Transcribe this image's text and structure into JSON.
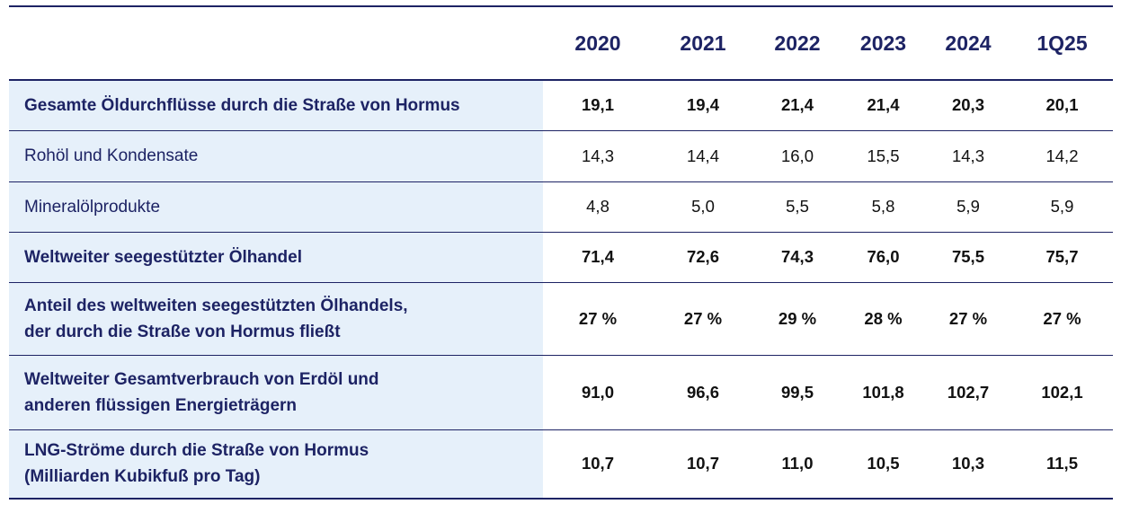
{
  "header": {
    "years": [
      "2020",
      "2021",
      "2022",
      "2023",
      "2024",
      "1Q25"
    ]
  },
  "rows": [
    {
      "label_lines": [
        "Gesamte Öldurchflüsse durch die Straße von Hormus"
      ],
      "values": [
        "19,1",
        "19,4",
        "21,4",
        "21,4",
        "20,3",
        "20,1"
      ]
    },
    {
      "label_lines": [
        "Rohöl und Kondensate"
      ],
      "values": [
        "14,3",
        "14,4",
        "16,0",
        "15,5",
        "14,3",
        "14,2"
      ]
    },
    {
      "label_lines": [
        "Mineralölprodukte"
      ],
      "values": [
        "4,8",
        "5,0",
        "5,5",
        "5,8",
        "5,9",
        "5,9"
      ]
    },
    {
      "label_lines": [
        "Weltweiter seegestützter Ölhandel"
      ],
      "values": [
        "71,4",
        "72,6",
        "74,3",
        "76,0",
        "75,5",
        "75,7"
      ]
    },
    {
      "label_lines": [
        "Anteil des weltweiten seegestützten Ölhandels,",
        "der durch die Straße von Hormus fließt"
      ],
      "values": [
        "27 %",
        "27 %",
        "29 %",
        "28 %",
        "27 %",
        "27 %"
      ]
    },
    {
      "label_lines": [
        "Weltweiter Gesamtverbrauch von Erdöl und",
        "anderen flüssigen Energieträgern"
      ],
      "values": [
        "91,0",
        "96,6",
        "99,5",
        "101,8",
        "102,7",
        "102,1"
      ]
    },
    {
      "label_lines": [
        "LNG-Ströme durch die Straße von Hormus",
        "(Milliarden Kubikfuß pro Tag)"
      ],
      "values": [
        "10,7",
        "10,7",
        "11,0",
        "10,5",
        "10,3",
        "11,5"
      ]
    }
  ],
  "colors": {
    "header_text": "#1d2364",
    "label_text": "#1d2364",
    "label_background": "#e6f0fa",
    "rule": "#1d2364"
  }
}
